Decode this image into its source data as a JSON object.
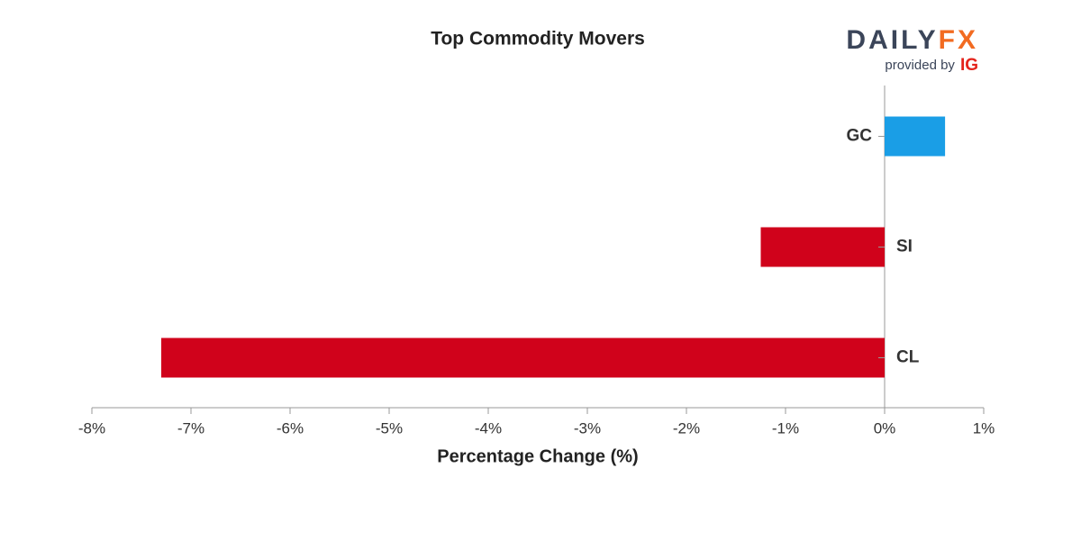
{
  "chart_data": {
    "type": "hbar",
    "title": "Top Commodity Movers",
    "categories": [
      "GC",
      "SI",
      "CL"
    ],
    "values": [
      0.61,
      -1.25,
      -7.3
    ],
    "colors": [
      "#1a9ee6",
      "#d0021b",
      "#d0021b"
    ],
    "xlabel": "Percentage Change (%)",
    "xlim": [
      -8,
      1
    ],
    "xticks": [
      {
        "value": -8,
        "label": "-8%"
      },
      {
        "value": -7,
        "label": "-7%"
      },
      {
        "value": -6,
        "label": "-6%"
      },
      {
        "value": -5,
        "label": "-5%"
      },
      {
        "value": -4,
        "label": "-4%"
      },
      {
        "value": -3,
        "label": "-3%"
      },
      {
        "value": -2,
        "label": "-2%"
      },
      {
        "value": -1,
        "label": "-1%"
      },
      {
        "value": 0,
        "label": "0%"
      },
      {
        "value": 1,
        "label": "1%"
      }
    ]
  },
  "logo": {
    "parts": [
      "DAILY",
      "FX"
    ],
    "provided_by": "provided by",
    "brand": "IG"
  }
}
